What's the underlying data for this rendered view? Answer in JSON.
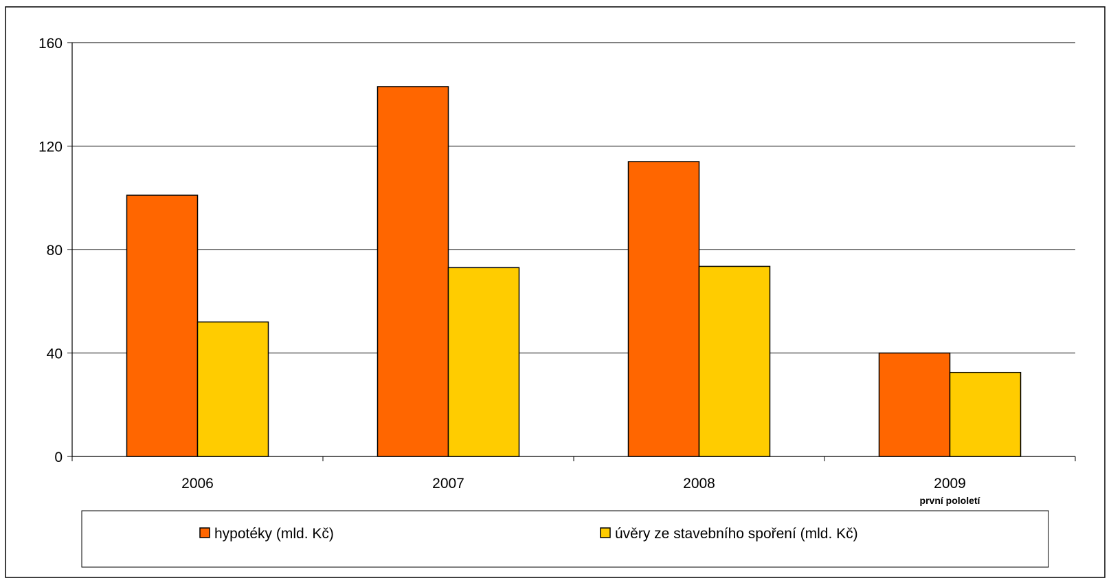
{
  "chart_data": {
    "type": "bar",
    "categories": [
      "2006",
      "2007",
      "2008",
      "2009"
    ],
    "category_sublabels": [
      "",
      "",
      "",
      "první pololetí"
    ],
    "series": [
      {
        "name": "hypotéky (mld. Kč)",
        "values": [
          101,
          143,
          114,
          40
        ],
        "color": "#FF6600"
      },
      {
        "name": "úvěry ze stavebního spoření (mld. Kč)",
        "values": [
          52,
          73,
          73.5,
          32.5
        ],
        "color": "#FFCC00"
      }
    ],
    "ylim": [
      0,
      160
    ],
    "yticks": [
      0,
      40,
      80,
      120,
      160
    ],
    "grid": true,
    "legend_position": "bottom",
    "title": "",
    "xlabel": "",
    "ylabel": ""
  }
}
